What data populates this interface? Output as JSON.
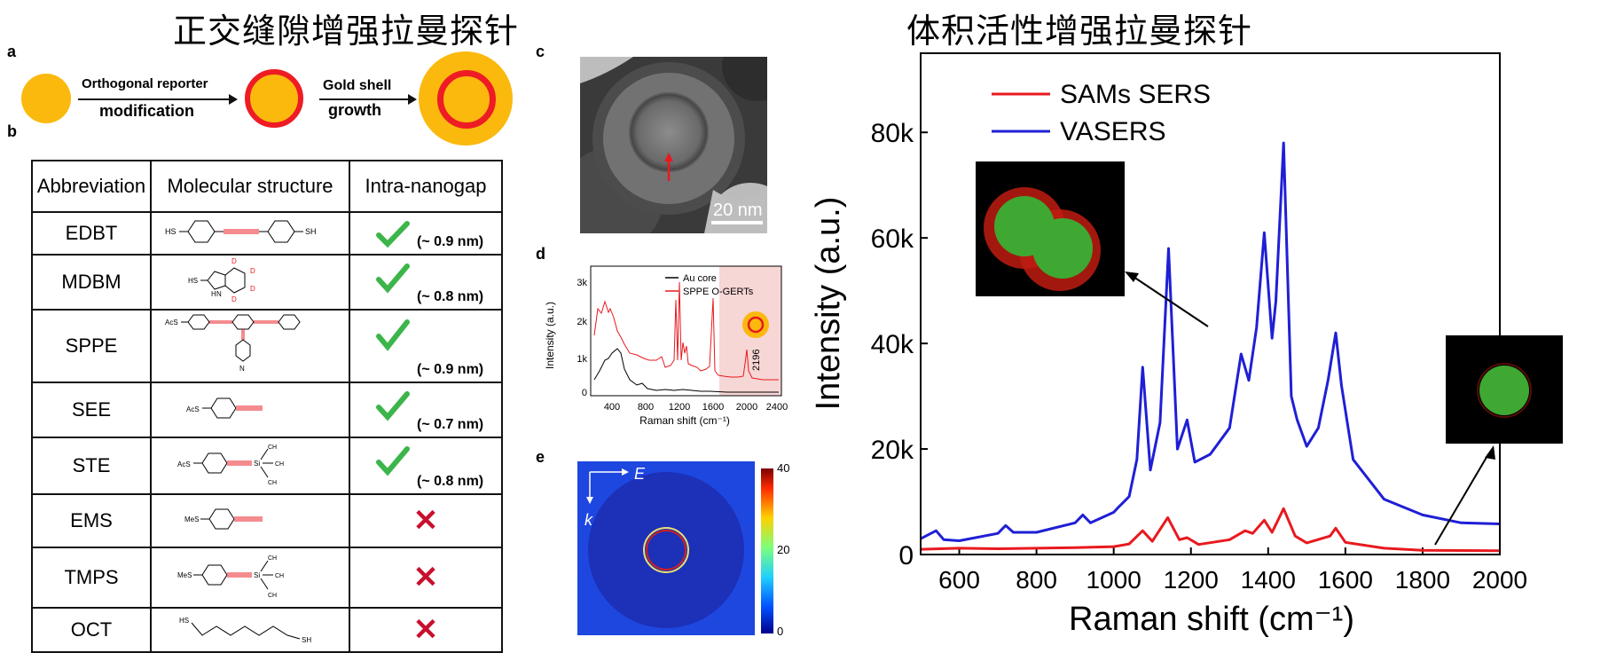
{
  "titles": {
    "left": "正交缝隙增强拉曼探针",
    "right": "体积活性增强拉曼探针"
  },
  "panel_labels": {
    "a": "a",
    "b": "b",
    "c": "c",
    "d": "d",
    "e": "e"
  },
  "schematic": {
    "step1_top": "Orthogonal reporter",
    "step1_bottom": "modification",
    "step2_top": "Gold shell",
    "step2_bottom": "growth"
  },
  "table": {
    "headers": [
      "Abbreviation",
      "Molecular structure",
      "Intra-nanogap"
    ],
    "rows": [
      {
        "abbr": "EDBT",
        "gap": "(~ 0.9 nm)",
        "ok": true
      },
      {
        "abbr": "MDBM",
        "gap": "(~ 0.8 nm)",
        "ok": true
      },
      {
        "abbr": "SPPE",
        "gap": "(~ 0.9 nm)",
        "ok": true
      },
      {
        "abbr": "SEE",
        "gap": "(~ 0.7 nm)",
        "ok": true
      },
      {
        "abbr": "STE",
        "gap": "(~ 0.8 nm)",
        "ok": true
      },
      {
        "abbr": "EMS",
        "gap": "",
        "ok": false
      },
      {
        "abbr": "TMPS",
        "gap": "",
        "ok": false
      },
      {
        "abbr": "OCT",
        "gap": "",
        "ok": false
      }
    ],
    "mol_text": {
      "edbt_left": "HS",
      "edbt_right": "SH",
      "mdbm_sh": "HS",
      "mdbm_h": "H",
      "mdbm_n": "N",
      "mdbm_d": "D",
      "ac_s": "AcS",
      "n": "N",
      "me_s": "MeS",
      "si": "Si",
      "ch3": "CH",
      "oct_hs": "HS",
      "oct_sh": "SH"
    },
    "cross_symbol": "✕"
  },
  "tem": {
    "scale_label": "20 nm"
  },
  "panel_d": {
    "ylabel": "Intensity (a.u.)",
    "xlabel": "Raman shift (cm⁻¹)",
    "yticks": [
      "0",
      "1k",
      "2k",
      "3k"
    ],
    "xticks": [
      "400",
      "800",
      "1200",
      "1600",
      "2000",
      "2400"
    ],
    "legend": [
      "Au core",
      "SPPE O-GERTs"
    ],
    "annotation": "2196",
    "colors": {
      "au": "#000000",
      "sppe": "#e8191f",
      "band": "#f7d6d6"
    }
  },
  "panel_e": {
    "e_label": "E",
    "k_label": "k",
    "colorbar_ticks": [
      "40",
      "20",
      "0"
    ]
  },
  "chart_data": {
    "type": "line",
    "xlabel": "Raman shift (cm⁻¹)",
    "ylabel": "Intensity (a.u.)",
    "xlim": [
      500,
      2000
    ],
    "ylim": [
      0,
      95000
    ],
    "xticks": [
      "600",
      "800",
      "1000",
      "1200",
      "1400",
      "1600",
      "1800",
      "2000"
    ],
    "yticks": [
      "0",
      "20k",
      "40k",
      "60k",
      "80k"
    ],
    "legend_position": "top-left",
    "series": [
      {
        "name": "SAMs SERS",
        "color": "#e8191f",
        "x": [
          500,
          600,
          700,
          800,
          900,
          1000,
          1040,
          1075,
          1100,
          1140,
          1170,
          1190,
          1220,
          1300,
          1340,
          1360,
          1390,
          1410,
          1440,
          1470,
          1500,
          1560,
          1575,
          1600,
          1700,
          1800,
          2000
        ],
        "y": [
          1000,
          1200,
          1100,
          1200,
          1300,
          1500,
          2000,
          4500,
          2500,
          7000,
          2800,
          3200,
          1900,
          2800,
          4500,
          4000,
          6500,
          4200,
          8700,
          3500,
          2200,
          3500,
          5000,
          2300,
          1200,
          800,
          700
        ]
      },
      {
        "name": "VASERS",
        "color": "#1f1fd6",
        "x": [
          500,
          540,
          560,
          600,
          700,
          720,
          740,
          800,
          900,
          920,
          940,
          1000,
          1010,
          1040,
          1060,
          1075,
          1095,
          1120,
          1142,
          1165,
          1190,
          1210,
          1250,
          1300,
          1330,
          1350,
          1370,
          1390,
          1410,
          1420,
          1440,
          1460,
          1475,
          1500,
          1530,
          1555,
          1575,
          1590,
          1620,
          1700,
          1800,
          1900,
          2000
        ],
        "y": [
          3000,
          4500,
          2800,
          2600,
          4000,
          5500,
          4200,
          4200,
          6000,
          7500,
          6000,
          8000,
          8800,
          11000,
          18000,
          35500,
          16000,
          25000,
          58000,
          20000,
          25500,
          17500,
          19000,
          24000,
          38000,
          33000,
          43000,
          61000,
          41000,
          48000,
          78000,
          30000,
          25500,
          20500,
          24000,
          33000,
          42000,
          32000,
          18000,
          10500,
          7500,
          6000,
          5800
        ]
      }
    ]
  }
}
